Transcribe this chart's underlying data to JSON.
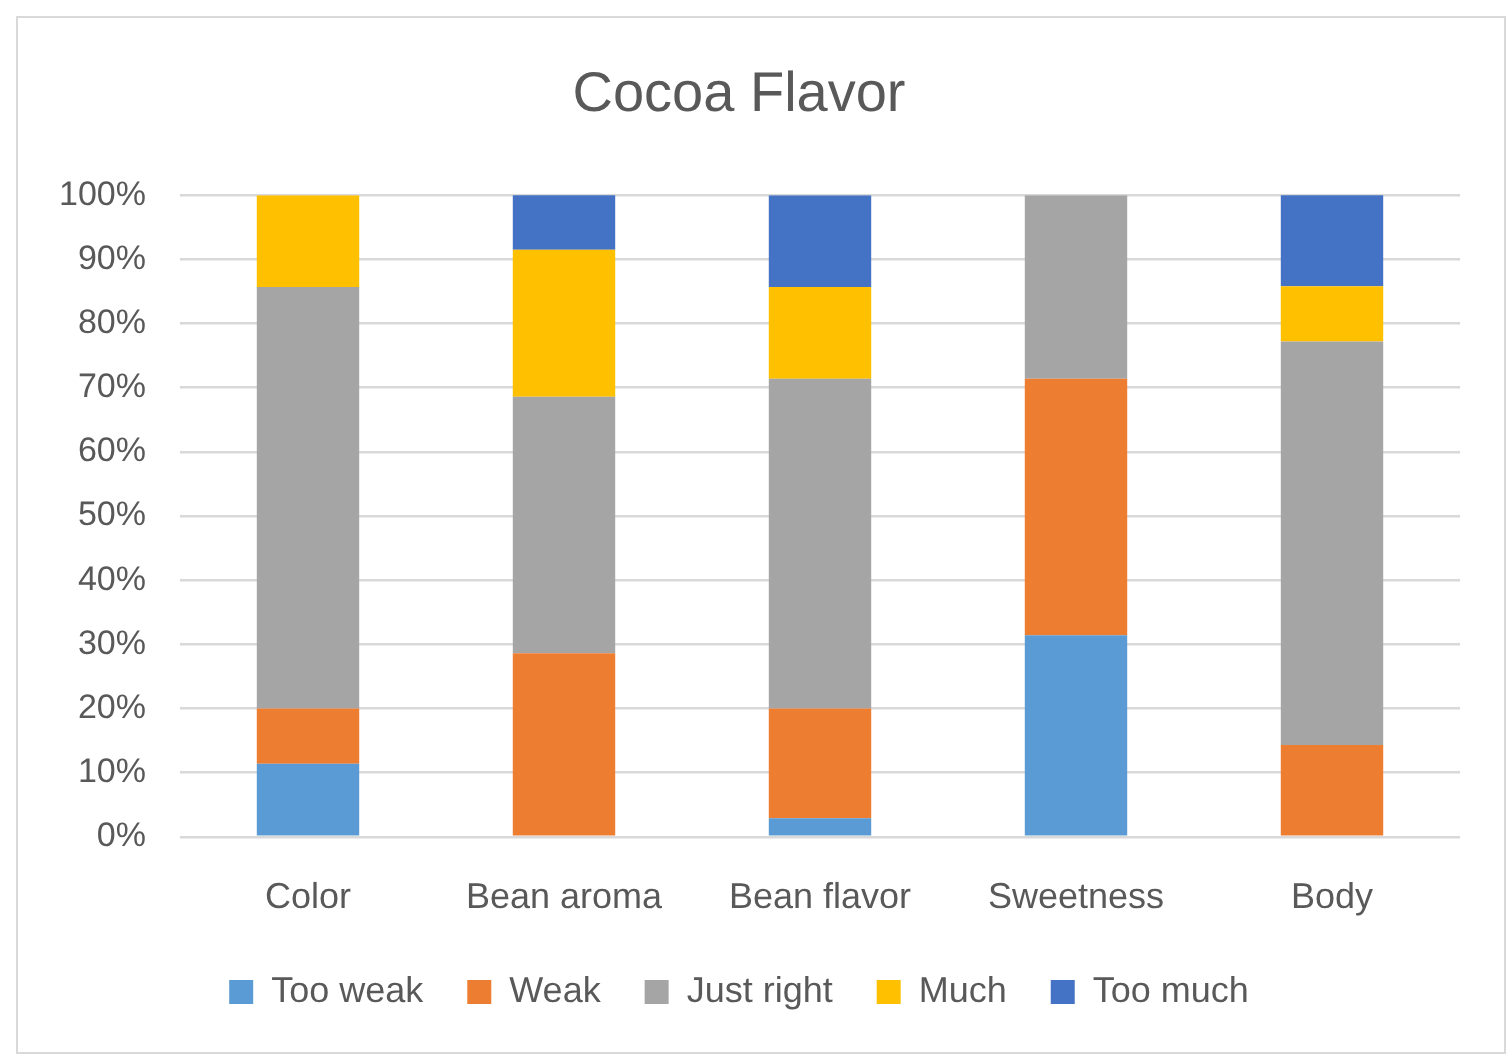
{
  "chart_data": {
    "type": "bar",
    "title": "Cocoa Flavor",
    "stacked": true,
    "grid": "y",
    "legend": "bottom",
    "categories": [
      "Color",
      "Bean aroma",
      "Bean flavor",
      "Sweetness",
      "Body"
    ],
    "series": [
      {
        "name": "Too weak",
        "color": "#5b9bd5",
        "values": [
          11.4,
          0,
          2.9,
          31.4,
          0
        ]
      },
      {
        "name": "Weak",
        "color": "#ed7d31",
        "values": [
          8.6,
          28.6,
          17.1,
          40,
          14.3
        ]
      },
      {
        "name": "Just right",
        "color": "#a5a5a5",
        "values": [
          65.7,
          40,
          51.4,
          28.6,
          62.9
        ]
      },
      {
        "name": "Much",
        "color": "#ffc000",
        "values": [
          14.3,
          22.9,
          14.3,
          0,
          8.6
        ]
      },
      {
        "name": "Too much",
        "color": "#4472c4",
        "values": [
          0,
          8.6,
          14.3,
          0,
          14.3
        ]
      }
    ],
    "ylim": [
      0,
      100
    ],
    "yticks": [
      {
        "value": 0,
        "label": "0%"
      },
      {
        "value": 10,
        "label": "10%"
      },
      {
        "value": 20,
        "label": "20%"
      },
      {
        "value": 30,
        "label": "30%"
      },
      {
        "value": 40,
        "label": "40%"
      },
      {
        "value": 50,
        "label": "50%"
      },
      {
        "value": 60,
        "label": "60%"
      },
      {
        "value": 70,
        "label": "70%"
      },
      {
        "value": 80,
        "label": "80%"
      },
      {
        "value": 90,
        "label": "90%"
      },
      {
        "value": 100,
        "label": "100%"
      }
    ]
  }
}
